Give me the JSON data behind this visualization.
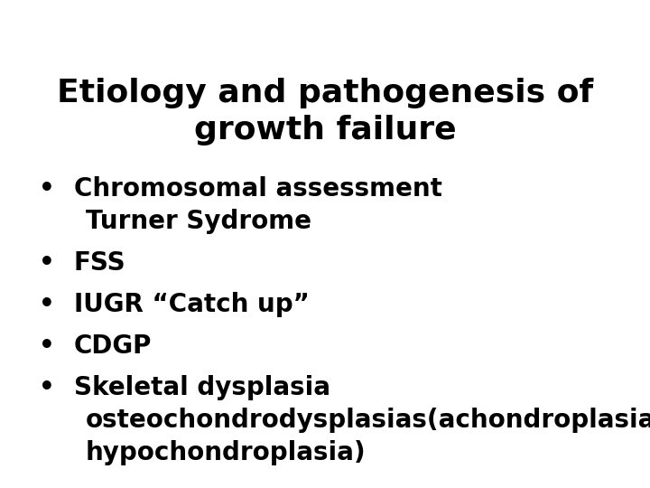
{
  "title_line1": "Etiology and pathogenesis of",
  "title_line2": "growth failure",
  "title_fontsize": 26,
  "title_color": "#000000",
  "background_color": "#ffffff",
  "bullet_items": [
    {
      "lines": [
        "Chromosomal assessment",
        "Turner Sydrome"
      ],
      "has_bullet": true,
      "indent_continuation": true
    },
    {
      "lines": [
        "FSS"
      ],
      "has_bullet": true,
      "indent_continuation": false
    },
    {
      "lines": [
        "IUGR “Catch up”"
      ],
      "has_bullet": true,
      "indent_continuation": false
    },
    {
      "lines": [
        "CDGP"
      ],
      "has_bullet": true,
      "indent_continuation": false
    },
    {
      "lines": [
        "Skeletal dysplasia",
        "osteochondrodysplasias(achondroplasia,",
        "hypochondroplasia)"
      ],
      "has_bullet": true,
      "indent_continuation": true
    }
  ],
  "bullet_fontsize": 20,
  "bullet_color": "#000000",
  "bullet_char": "•",
  "font_family": "DejaVu Sans",
  "font_weight": "bold",
  "fig_width": 7.2,
  "fig_height": 5.4,
  "dpi": 100
}
